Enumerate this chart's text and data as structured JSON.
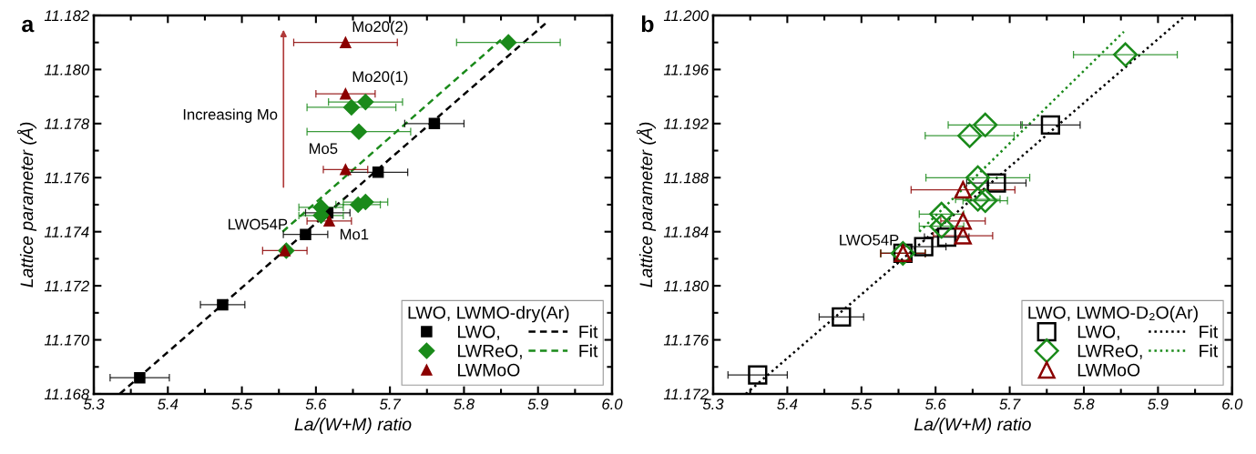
{
  "chart_data": [
    {
      "type": "scatter",
      "title": "a",
      "xlabel": "La/(W+M) ratio",
      "ylabel": "Lattice parameter (Å)",
      "legend_title": "LWO, LWMO-dry(Ar)",
      "legend": "bottom right",
      "xlim": [
        5.3,
        6.0
      ],
      "xticks": [
        5.3,
        5.4,
        5.5,
        5.6,
        5.7,
        5.8,
        5.9,
        {
          "value": 6.0,
          "label": "6.0"
        }
      ],
      "ylim": [
        11.168,
        11.182
      ],
      "yticks": [
        11.168,
        {
          "value": 11.17,
          "label": "11.170"
        },
        11.172,
        11.174,
        11.176,
        11.178,
        {
          "value": 11.18,
          "label": "11.180"
        },
        11.182
      ],
      "series": [
        {
          "name": "LWO,",
          "color": "#000000",
          "marker": "square",
          "x": [
            5.362,
            5.474,
            5.586,
            5.616,
            5.684,
            5.76
          ],
          "values": [
            11.1686,
            11.1713,
            11.1739,
            11.1747,
            11.1762,
            11.178
          ],
          "xerrors": [
            0.04,
            0.03,
            0.03,
            0.03,
            0.04,
            0.04
          ]
        },
        {
          "name": "LWReO,",
          "color": "#1a8a1a",
          "marker": "diamond",
          "x": [
            5.86,
            5.648,
            5.667,
            5.658,
            5.657,
            5.667,
            5.607,
            5.607,
            5.56
          ],
          "values": [
            11.181,
            11.1786,
            11.1788,
            11.1777,
            11.175,
            11.1751,
            11.1749,
            11.1746,
            11.1733
          ],
          "xerrors": [
            0.07,
            0.06,
            0.05,
            0.07,
            0.03,
            0.03,
            0.03,
            0.03,
            null
          ]
        },
        {
          "name": "LWMoO",
          "color": "#8b0000",
          "marker": "triangle",
          "x": [
            5.64,
            5.64,
            5.64,
            5.618,
            5.558
          ],
          "values": [
            11.181,
            11.1791,
            11.1763,
            11.1744,
            11.1733
          ],
          "xerrors": [
            0.07,
            0.04,
            0.03,
            0.03,
            0.03
          ]
        },
        {
          "name": "Fit",
          "type": "line",
          "color": "#000000",
          "line_style": "dashed",
          "x": [
            5.335,
            5.91
          ],
          "values": [
            11.168,
            11.1817
          ]
        },
        {
          "name": "Fit",
          "type": "line",
          "color": "#1a8a1a",
          "line_style": "dashed",
          "x": [
            5.555,
            5.85
          ],
          "values": [
            11.174,
            11.1811
          ]
        }
      ],
      "annotations": [
        {
          "text": "Mo20(2)",
          "x": 5.64,
          "y": 11.181
        },
        {
          "text": "Mo20(1)",
          "x": 5.64,
          "y": 11.1791
        },
        {
          "text": "Mo5",
          "x": 5.64,
          "y": 11.1763
        },
        {
          "text": "Mo1",
          "x": 5.618,
          "y": 11.1744
        },
        {
          "text": "LWO54P",
          "x": 5.586,
          "y": 11.1739
        },
        "Increasing Mo"
      ]
    },
    {
      "type": "scatter",
      "title": "b",
      "xlabel": "La/(W+M) ratio",
      "ylabel": "Lattice parameter (Å)",
      "legend_title": "LWO, LWMO-D₂O(Ar)",
      "legend": "bottom right",
      "xlim": [
        5.3,
        6.0
      ],
      "xticks": [
        5.3,
        5.4,
        5.5,
        5.6,
        5.7,
        5.8,
        5.9,
        {
          "value": 6.0,
          "label": "6.0"
        }
      ],
      "ylim": [
        11.172,
        11.2
      ],
      "yticks": [
        11.172,
        11.176,
        {
          "value": 11.18,
          "label": "11.180"
        },
        11.184,
        11.188,
        11.192,
        11.196,
        {
          "value": 11.2,
          "label": "11.200"
        }
      ],
      "series": [
        {
          "name": "LWO,",
          "color": "#000000",
          "marker": "square",
          "x": [
            5.36,
            5.473,
            5.556,
            5.584,
            5.615,
            5.682,
            5.755
          ],
          "values": [
            11.1734,
            11.1777,
            11.1824,
            11.1829,
            11.1836,
            11.1876,
            11.1919
          ],
          "xerrors": [
            0.04,
            0.03,
            0.03,
            0.03,
            0.03,
            0.04,
            0.04
          ]
        },
        {
          "name": "LWReO,",
          "color": "#1a8a1a",
          "marker": "diamond",
          "x": [
            5.856,
            5.667,
            5.646,
            5.657,
            5.657,
            5.667,
            5.608,
            5.608,
            5.556
          ],
          "values": [
            11.1971,
            11.1919,
            11.1911,
            11.188,
            11.1864,
            11.1863,
            11.1853,
            11.1844,
            11.1824
          ],
          "xerrors": [
            0.07,
            0.05,
            0.06,
            0.07,
            0.03,
            0.03,
            0.03,
            0.03,
            0.03
          ]
        },
        {
          "name": "LWMoO",
          "color": "#8b0000",
          "marker": "triangle",
          "x": [
            5.637,
            5.637,
            5.637,
            5.556
          ],
          "values": [
            11.1871,
            11.1848,
            11.1837,
            11.1824
          ],
          "xerrors": [
            0.07,
            0.03,
            0.04,
            0.03
          ]
        },
        {
          "name": "Fit",
          "type": "line",
          "color": "#000000",
          "line_style": "dotted",
          "x": [
            5.344,
            5.935
          ],
          "values": [
            11.172,
            11.1999
          ]
        },
        {
          "name": "Fit",
          "type": "line",
          "color": "#1a8a1a",
          "line_style": "dotted",
          "x": [
            5.578,
            5.854
          ],
          "values": [
            11.184,
            11.1988
          ]
        }
      ],
      "annotations": [
        {
          "text": "LWO54P",
          "x": 5.556,
          "y": 11.1824
        }
      ]
    }
  ]
}
